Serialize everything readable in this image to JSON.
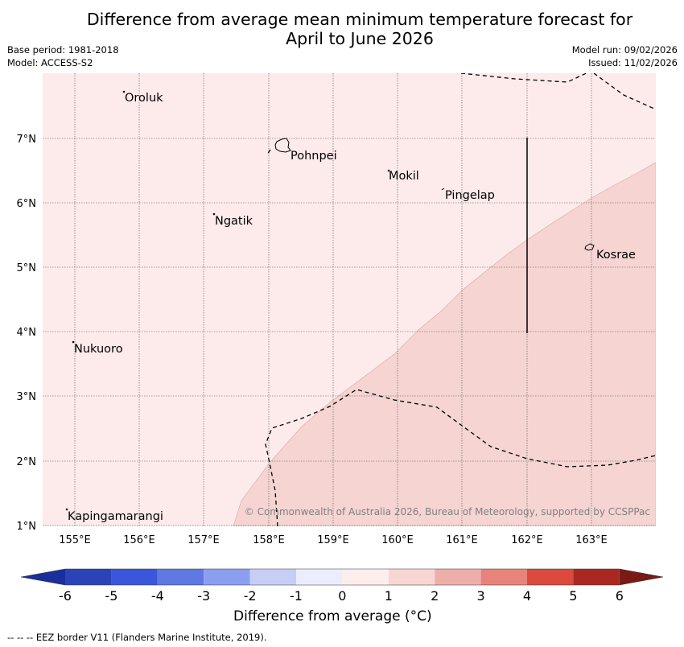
{
  "header": {
    "title_line1": "Difference from average mean minimum temperature forecast for",
    "title_line2": "April to June 2026",
    "base_period": "Base period: 1981-2018",
    "model": "Model: ACCESS-S2",
    "model_run": "Model run: 09/02/2026",
    "issued": "Issued: 11/02/2026"
  },
  "map": {
    "lat_labels": [
      "7°N",
      "6°N",
      "5°N",
      "4°N",
      "3°N",
      "2°N",
      "1°N"
    ],
    "lon_labels": [
      "155°E",
      "156°E",
      "157°E",
      "158°E",
      "159°E",
      "160°E",
      "161°E",
      "162°E",
      "163°E"
    ],
    "places": [
      "Oroluk",
      "Pohnpei",
      "Mokil",
      "Pingelap",
      "Ngatik",
      "Kosrae",
      "Nukuoro",
      "Kapingamarangi"
    ],
    "copyright": "© Commonwealth of Australia 2026, Bureau of Meteorology, supported by CCSPPac",
    "colors": {
      "anomaly_0_1": "#fcebea",
      "anomaly_1_2": "#f5d4d2"
    }
  },
  "colorbar": {
    "ticks": [
      "-6",
      "-5",
      "-4",
      "-3",
      "-2",
      "-1",
      "0",
      "1",
      "2",
      "3",
      "4",
      "5",
      "6"
    ],
    "label": "Difference from average (°C)",
    "colors": [
      "#1a2e9c",
      "#2a44b8",
      "#3a57dc",
      "#5f78e4",
      "#8a9ff0",
      "#c6cdf6",
      "#ebedfc",
      "#fdeeec",
      "#f7d6d4",
      "#eeaeaa",
      "#e8837c",
      "#db4a3d",
      "#aa2822",
      "#7a1a14"
    ]
  },
  "footer": {
    "legend": "--  --  -- EEZ border V11 (Flanders Marine Institute, 2019)."
  }
}
